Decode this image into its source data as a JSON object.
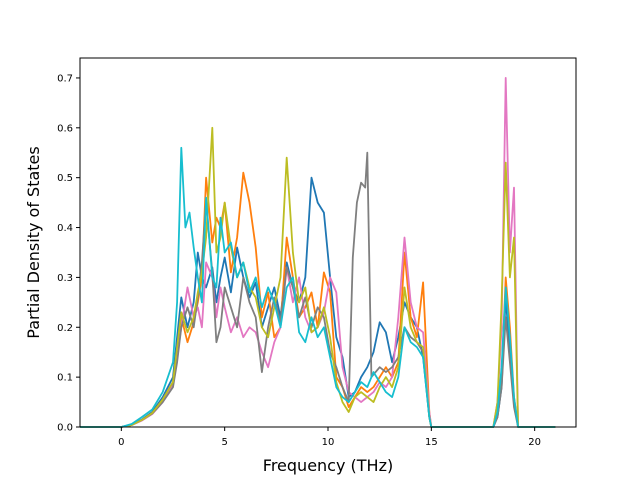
{
  "chart_data": {
    "type": "line",
    "title": "",
    "xlabel": "Frequency (THz)",
    "ylabel": "Partial Density of States",
    "xlim": [
      -2.0,
      22.0
    ],
    "ylim": [
      0.0,
      0.74
    ],
    "x_ticks": [
      0,
      5,
      10,
      15,
      20
    ],
    "y_ticks": [
      0.0,
      0.1,
      0.2,
      0.3,
      0.4,
      0.5,
      0.6,
      0.7
    ],
    "x_tick_labels": [
      "0",
      "5",
      "10",
      "15",
      "20"
    ],
    "y_tick_labels": [
      "0.0",
      "0.1",
      "0.2",
      "0.3",
      "0.4",
      "0.5",
      "0.6",
      "0.7"
    ],
    "grid": false,
    "legend": "none",
    "series": [
      {
        "color": "#1f77b4",
        "x": [
          -2.0,
          0.0,
          0.5,
          1.0,
          1.5,
          2.0,
          2.5,
          2.7,
          2.9,
          3.2,
          3.5,
          3.7,
          3.9,
          4.1,
          4.4,
          4.6,
          4.8,
          5.0,
          5.3,
          5.6,
          5.9,
          6.2,
          6.5,
          6.8,
          7.1,
          7.4,
          7.7,
          8.0,
          8.3,
          8.6,
          8.9,
          9.2,
          9.5,
          9.8,
          10.1,
          10.4,
          10.7,
          11.0,
          11.3,
          11.6,
          11.9,
          12.2,
          12.5,
          12.8,
          13.1,
          13.4,
          13.7,
          14.0,
          14.3,
          14.6,
          14.9,
          15.0,
          15.5,
          18.0,
          18.2,
          18.4,
          18.6,
          18.8,
          19.0,
          19.2,
          20.0,
          21.0
        ],
        "y": [
          0.0,
          0.0,
          0.005,
          0.015,
          0.03,
          0.06,
          0.1,
          0.18,
          0.26,
          0.2,
          0.25,
          0.35,
          0.3,
          0.28,
          0.32,
          0.25,
          0.3,
          0.34,
          0.27,
          0.36,
          0.3,
          0.26,
          0.29,
          0.2,
          0.24,
          0.28,
          0.22,
          0.33,
          0.28,
          0.25,
          0.3,
          0.5,
          0.45,
          0.43,
          0.3,
          0.18,
          0.14,
          0.06,
          0.07,
          0.1,
          0.12,
          0.15,
          0.21,
          0.19,
          0.13,
          0.18,
          0.25,
          0.22,
          0.2,
          0.14,
          0.02,
          0.0,
          0.0,
          0.0,
          0.02,
          0.08,
          0.26,
          0.15,
          0.05,
          0.0,
          0.0,
          0.0
        ]
      },
      {
        "color": "#ff7f0e",
        "x": [
          -2.0,
          0.0,
          0.5,
          1.0,
          1.5,
          2.0,
          2.5,
          2.7,
          2.9,
          3.2,
          3.5,
          3.7,
          3.9,
          4.1,
          4.4,
          4.6,
          4.8,
          5.0,
          5.3,
          5.6,
          5.9,
          6.2,
          6.5,
          6.8,
          7.1,
          7.4,
          7.7,
          8.0,
          8.3,
          8.6,
          8.9,
          9.2,
          9.5,
          9.8,
          10.1,
          10.4,
          10.7,
          11.0,
          11.3,
          11.6,
          11.9,
          12.2,
          12.5,
          12.8,
          13.1,
          13.4,
          13.7,
          14.0,
          14.3,
          14.6,
          14.9,
          15.0,
          15.5,
          18.0,
          18.2,
          18.4,
          18.6,
          18.8,
          19.0,
          19.2,
          20.0,
          21.0
        ],
        "y": [
          0.0,
          0.0,
          0.004,
          0.014,
          0.028,
          0.055,
          0.09,
          0.15,
          0.22,
          0.17,
          0.21,
          0.25,
          0.3,
          0.5,
          0.37,
          0.42,
          0.4,
          0.45,
          0.31,
          0.38,
          0.51,
          0.45,
          0.36,
          0.22,
          0.27,
          0.18,
          0.2,
          0.38,
          0.3,
          0.22,
          0.24,
          0.27,
          0.2,
          0.31,
          0.27,
          0.1,
          0.08,
          0.04,
          0.06,
          0.08,
          0.07,
          0.08,
          0.1,
          0.12,
          0.1,
          0.13,
          0.35,
          0.22,
          0.18,
          0.29,
          0.03,
          0.0,
          0.0,
          0.0,
          0.03,
          0.1,
          0.3,
          0.2,
          0.06,
          0.0,
          0.0,
          0.0
        ]
      },
      {
        "color": "#e377c2",
        "x": [
          -2.0,
          0.0,
          0.5,
          1.0,
          1.5,
          2.0,
          2.5,
          2.7,
          2.9,
          3.2,
          3.5,
          3.7,
          3.9,
          4.1,
          4.4,
          4.6,
          4.8,
          5.0,
          5.3,
          5.6,
          5.9,
          6.2,
          6.5,
          6.8,
          7.1,
          7.4,
          7.7,
          8.0,
          8.3,
          8.6,
          8.9,
          9.2,
          9.5,
          9.8,
          10.1,
          10.4,
          10.7,
          11.0,
          11.3,
          11.6,
          11.9,
          12.2,
          12.5,
          12.8,
          13.1,
          13.4,
          13.7,
          14.0,
          14.3,
          14.6,
          14.9,
          15.0,
          15.5,
          18.0,
          18.2,
          18.4,
          18.6,
          18.8,
          19.0,
          19.2,
          20.0,
          21.0
        ],
        "y": [
          0.0,
          0.0,
          0.004,
          0.013,
          0.026,
          0.05,
          0.085,
          0.14,
          0.2,
          0.28,
          0.22,
          0.24,
          0.2,
          0.33,
          0.3,
          0.22,
          0.28,
          0.24,
          0.19,
          0.22,
          0.18,
          0.2,
          0.19,
          0.15,
          0.12,
          0.17,
          0.2,
          0.32,
          0.25,
          0.3,
          0.22,
          0.19,
          0.2,
          0.23,
          0.3,
          0.27,
          0.12,
          0.07,
          0.06,
          0.05,
          0.06,
          0.07,
          0.09,
          0.08,
          0.1,
          0.22,
          0.38,
          0.25,
          0.2,
          0.19,
          0.03,
          0.0,
          0.0,
          0.0,
          0.05,
          0.2,
          0.7,
          0.35,
          0.48,
          0.0,
          0.0,
          0.0
        ]
      },
      {
        "color": "#7f7f7f",
        "x": [
          -2.0,
          0.0,
          0.5,
          1.0,
          1.5,
          2.0,
          2.5,
          2.7,
          2.9,
          3.2,
          3.5,
          3.7,
          3.9,
          4.1,
          4.4,
          4.6,
          4.8,
          5.0,
          5.3,
          5.6,
          5.9,
          6.2,
          6.5,
          6.8,
          7.1,
          7.4,
          7.7,
          8.0,
          8.3,
          8.6,
          8.9,
          9.2,
          9.5,
          9.8,
          10.1,
          10.4,
          10.7,
          11.0,
          11.2,
          11.4,
          11.6,
          11.8,
          11.9,
          12.1,
          12.5,
          12.8,
          13.1,
          13.4,
          13.7,
          14.0,
          14.3,
          14.6,
          14.9,
          15.0,
          15.5,
          18.0,
          18.2,
          18.4,
          18.6,
          18.8,
          19.0,
          19.2,
          20.0,
          21.0
        ],
        "y": [
          0.0,
          0.0,
          0.004,
          0.014,
          0.027,
          0.05,
          0.08,
          0.13,
          0.2,
          0.24,
          0.2,
          0.26,
          0.33,
          0.45,
          0.31,
          0.17,
          0.2,
          0.28,
          0.24,
          0.2,
          0.3,
          0.25,
          0.22,
          0.11,
          0.2,
          0.26,
          0.21,
          0.32,
          0.28,
          0.22,
          0.26,
          0.2,
          0.24,
          0.22,
          0.15,
          0.12,
          0.08,
          0.05,
          0.34,
          0.45,
          0.49,
          0.48,
          0.55,
          0.1,
          0.12,
          0.11,
          0.12,
          0.14,
          0.2,
          0.18,
          0.17,
          0.15,
          0.02,
          0.0,
          0.0,
          0.0,
          0.02,
          0.08,
          0.22,
          0.13,
          0.04,
          0.0,
          0.0,
          0.0
        ]
      },
      {
        "color": "#bcbd22",
        "x": [
          -2.0,
          0.0,
          0.5,
          1.0,
          1.5,
          2.0,
          2.5,
          2.7,
          2.9,
          3.2,
          3.5,
          3.7,
          3.9,
          4.1,
          4.4,
          4.6,
          4.8,
          5.0,
          5.3,
          5.6,
          5.9,
          6.2,
          6.5,
          6.8,
          7.1,
          7.4,
          7.7,
          8.0,
          8.3,
          8.6,
          8.9,
          9.2,
          9.5,
          9.8,
          10.1,
          10.4,
          10.7,
          11.0,
          11.3,
          11.6,
          11.9,
          12.2,
          12.5,
          12.8,
          13.1,
          13.4,
          13.7,
          14.0,
          14.3,
          14.6,
          14.9,
          15.0,
          15.5,
          18.0,
          18.2,
          18.4,
          18.6,
          18.8,
          19.0,
          19.2,
          20.0,
          21.0
        ],
        "y": [
          0.0,
          0.0,
          0.004,
          0.014,
          0.028,
          0.055,
          0.09,
          0.16,
          0.23,
          0.19,
          0.22,
          0.27,
          0.31,
          0.38,
          0.6,
          0.35,
          0.38,
          0.45,
          0.36,
          0.3,
          0.33,
          0.28,
          0.26,
          0.2,
          0.18,
          0.24,
          0.3,
          0.54,
          0.35,
          0.25,
          0.28,
          0.19,
          0.2,
          0.24,
          0.18,
          0.09,
          0.05,
          0.03,
          0.06,
          0.07,
          0.06,
          0.05,
          0.08,
          0.1,
          0.08,
          0.12,
          0.28,
          0.2,
          0.17,
          0.16,
          0.02,
          0.0,
          0.0,
          0.0,
          0.05,
          0.25,
          0.53,
          0.3,
          0.38,
          0.0,
          0.0,
          0.0
        ]
      },
      {
        "color": "#17becf",
        "x": [
          -2.0,
          0.0,
          0.5,
          1.0,
          1.5,
          2.0,
          2.5,
          2.7,
          2.9,
          3.1,
          3.3,
          3.5,
          3.7,
          3.9,
          4.1,
          4.4,
          4.6,
          4.8,
          5.0,
          5.3,
          5.6,
          5.9,
          6.2,
          6.5,
          6.8,
          7.1,
          7.4,
          7.7,
          8.0,
          8.3,
          8.6,
          8.9,
          9.2,
          9.5,
          9.8,
          10.1,
          10.4,
          10.7,
          11.0,
          11.3,
          11.6,
          11.9,
          12.2,
          12.5,
          12.8,
          13.1,
          13.4,
          13.7,
          14.0,
          14.3,
          14.6,
          14.9,
          15.0,
          15.5,
          18.0,
          18.2,
          18.4,
          18.6,
          18.8,
          19.0,
          19.2,
          20.0,
          21.0
        ],
        "y": [
          0.0,
          0.0,
          0.006,
          0.02,
          0.035,
          0.07,
          0.13,
          0.25,
          0.56,
          0.4,
          0.43,
          0.36,
          0.3,
          0.25,
          0.46,
          0.3,
          0.28,
          0.42,
          0.35,
          0.37,
          0.3,
          0.33,
          0.27,
          0.3,
          0.24,
          0.28,
          0.25,
          0.2,
          0.28,
          0.3,
          0.19,
          0.17,
          0.22,
          0.18,
          0.2,
          0.14,
          0.08,
          0.06,
          0.05,
          0.07,
          0.09,
          0.08,
          0.11,
          0.09,
          0.07,
          0.06,
          0.1,
          0.2,
          0.17,
          0.16,
          0.14,
          0.02,
          0.0,
          0.0,
          0.0,
          0.03,
          0.12,
          0.28,
          0.18,
          0.06,
          0.0,
          0.0,
          0.0
        ]
      }
    ]
  }
}
